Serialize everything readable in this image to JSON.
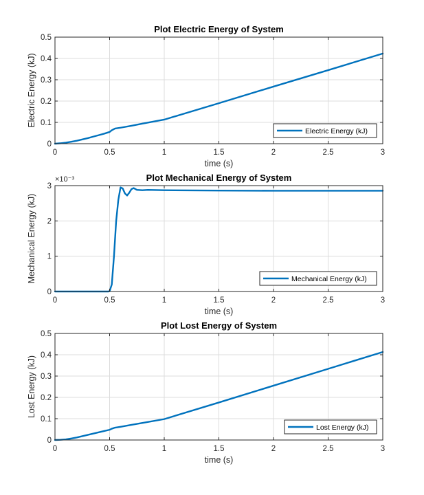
{
  "chart_data": [
    {
      "type": "line",
      "title": "Plot Electric Energy of System",
      "xlabel": "time (s)",
      "ylabel": "Electric Energy (kJ)",
      "xlim": [
        0,
        3
      ],
      "ylim": [
        0,
        0.5
      ],
      "xticks": [
        0,
        0.5,
        1,
        1.5,
        2,
        2.5,
        3
      ],
      "xtick_labels": [
        "0",
        "0.5",
        "1",
        "1.5",
        "2",
        "2.5",
        "3"
      ],
      "yticks": [
        0,
        0.1,
        0.2,
        0.3,
        0.4,
        0.5
      ],
      "ytick_labels": [
        "0",
        "0.1",
        "0.2",
        "0.3",
        "0.4",
        "0.5"
      ],
      "exponent_label": "",
      "grid": true,
      "legend_position": "bottom-right",
      "series": [
        {
          "name": "Electric Energy (kJ)",
          "color": "#0072BD",
          "x": [
            0,
            0.05,
            0.1,
            0.15,
            0.2,
            0.25,
            0.3,
            0.35,
            0.4,
            0.45,
            0.5,
            0.52,
            0.55,
            0.6,
            0.7,
            0.8,
            1.0,
            1.5,
            2.0,
            2.5,
            3.0
          ],
          "y": [
            0,
            0.002,
            0.005,
            0.009,
            0.014,
            0.02,
            0.026,
            0.033,
            0.04,
            0.047,
            0.055,
            0.063,
            0.071,
            0.075,
            0.084,
            0.094,
            0.113,
            0.19,
            0.268,
            0.345,
            0.423
          ]
        }
      ]
    },
    {
      "type": "line",
      "title": "Plot Mechanical Energy of System",
      "xlabel": "time (s)",
      "ylabel": "Mechanical Energy (kJ)",
      "xlim": [
        0,
        3
      ],
      "ylim": [
        0,
        3
      ],
      "xticks": [
        0,
        0.5,
        1,
        1.5,
        2,
        2.5,
        3
      ],
      "xtick_labels": [
        "0",
        "0.5",
        "1",
        "1.5",
        "2",
        "2.5",
        "3"
      ],
      "yticks": [
        0,
        1,
        2,
        3
      ],
      "ytick_labels": [
        "0",
        "1",
        "2",
        "3"
      ],
      "exponent_label": "×10⁻³",
      "grid": true,
      "legend_position": "bottom-right",
      "series": [
        {
          "name": "Mechanical Energy (kJ)",
          "color": "#0072BD",
          "x": [
            0,
            0.49,
            0.5,
            0.52,
            0.54,
            0.56,
            0.58,
            0.6,
            0.62,
            0.64,
            0.66,
            0.68,
            0.7,
            0.72,
            0.75,
            0.8,
            0.85,
            1.0,
            1.5,
            2.0,
            2.5,
            3.0
          ],
          "y": [
            0,
            0,
            0.01,
            0.2,
            1.0,
            2.0,
            2.6,
            2.95,
            2.92,
            2.78,
            2.72,
            2.8,
            2.9,
            2.93,
            2.88,
            2.87,
            2.88,
            2.87,
            2.86,
            2.855,
            2.855,
            2.855
          ]
        }
      ]
    },
    {
      "type": "line",
      "title": "Plot Lost Energy of System",
      "xlabel": "time (s)",
      "ylabel": "Lost Energy (kJ)",
      "xlim": [
        0,
        3
      ],
      "ylim": [
        0,
        0.5
      ],
      "xticks": [
        0,
        0.5,
        1,
        1.5,
        2,
        2.5,
        3
      ],
      "xtick_labels": [
        "0",
        "0.5",
        "1",
        "1.5",
        "2",
        "2.5",
        "3"
      ],
      "yticks": [
        0,
        0.1,
        0.2,
        0.3,
        0.4,
        0.5
      ],
      "ytick_labels": [
        "0",
        "0.1",
        "0.2",
        "0.3",
        "0.4",
        "0.5"
      ],
      "exponent_label": "",
      "grid": true,
      "legend_position": "bottom-right",
      "series": [
        {
          "name": "Lost Energy (kJ)",
          "color": "#0072BD",
          "x": [
            0,
            0.05,
            0.1,
            0.15,
            0.2,
            0.25,
            0.3,
            0.35,
            0.4,
            0.45,
            0.5,
            0.52,
            0.55,
            0.6,
            0.7,
            0.8,
            1.0,
            1.5,
            2.0,
            2.5,
            3.0
          ],
          "y": [
            0,
            0.001,
            0.003,
            0.007,
            0.012,
            0.018,
            0.024,
            0.03,
            0.036,
            0.042,
            0.048,
            0.053,
            0.058,
            0.062,
            0.071,
            0.08,
            0.098,
            0.176,
            0.255,
            0.334,
            0.413
          ]
        }
      ]
    }
  ]
}
